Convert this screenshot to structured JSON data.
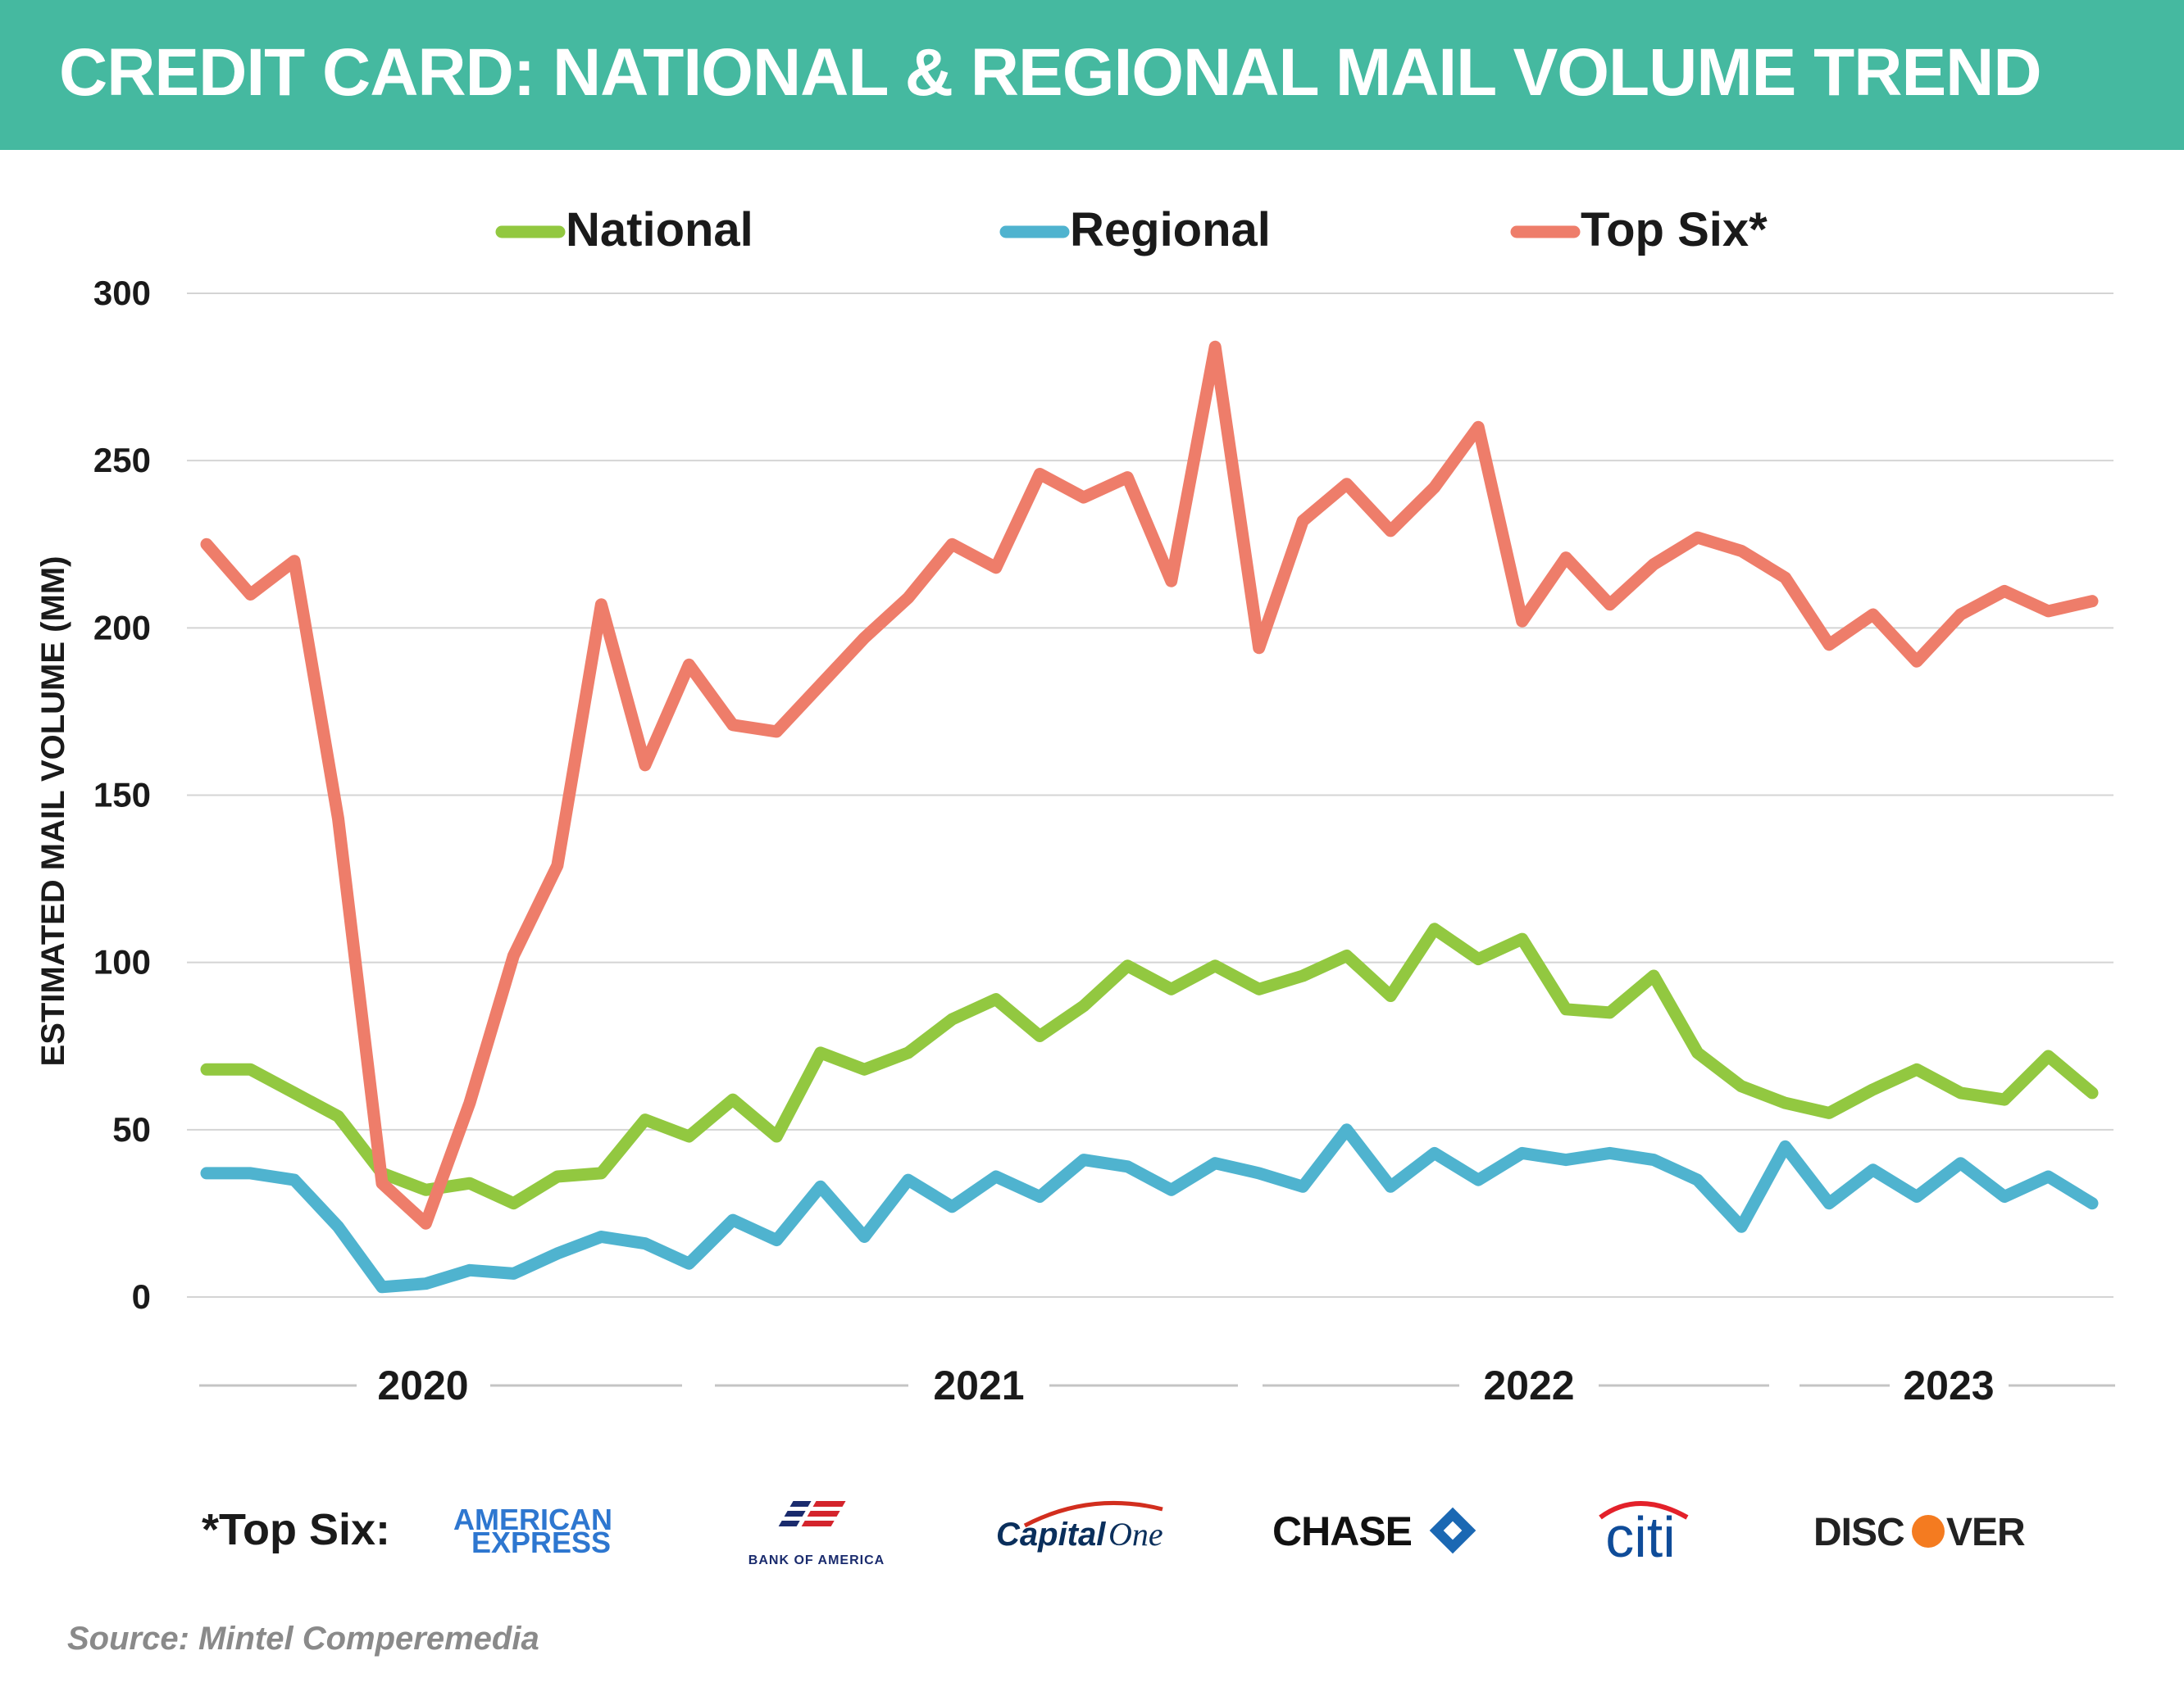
{
  "header": {
    "title": "CREDIT CARD: NATIONAL & REGIONAL MAIL VOLUME TREND"
  },
  "chart_data": {
    "type": "line",
    "title": "CREDIT CARD: NATIONAL & REGIONAL MAIL VOLUME TREND",
    "ylabel": "ESTIMATED MAIL VOLUME (MM)",
    "xlabel": "",
    "ylim": [
      0,
      300
    ],
    "yticks": [
      0,
      50,
      100,
      150,
      200,
      250,
      300
    ],
    "grid": true,
    "legend_position": "top",
    "x_period": "monthly",
    "year_labels": [
      "2020",
      "2021",
      "2022",
      "2023"
    ],
    "series": [
      {
        "name": "National",
        "color": "#92c840",
        "values": [
          68,
          68,
          61,
          54,
          37,
          32,
          34,
          28,
          36,
          37,
          53,
          48,
          59,
          48,
          73,
          68,
          73,
          83,
          89,
          78,
          87,
          99,
          92,
          99,
          92,
          96,
          102,
          90,
          110,
          101,
          107,
          86,
          85,
          96,
          73,
          63,
          58,
          55,
          62,
          68,
          61,
          59,
          72,
          61
        ]
      },
      {
        "name": "Regional",
        "color": "#4fb3cf",
        "values": [
          37,
          37,
          35,
          21,
          3,
          4,
          8,
          7,
          13,
          18,
          16,
          10,
          23,
          17,
          33,
          18,
          35,
          27,
          36,
          30,
          41,
          39,
          32,
          40,
          37,
          33,
          50,
          33,
          43,
          35,
          43,
          41,
          43,
          41,
          35,
          21,
          45,
          28,
          38,
          30,
          40,
          30,
          36,
          28
        ]
      },
      {
        "name": "Top Six*",
        "color": "#ee7d6a",
        "values": [
          225,
          210,
          220,
          143,
          34,
          22,
          58,
          102,
          129,
          207,
          159,
          189,
          171,
          169,
          183,
          197,
          209,
          225,
          218,
          246,
          239,
          245,
          214,
          284,
          194,
          232,
          243,
          229,
          242,
          260,
          202,
          221,
          207,
          219,
          227,
          223,
          215,
          195,
          204,
          190,
          204,
          211,
          205,
          208
        ]
      }
    ]
  },
  "footnote": {
    "label": "*Top Six:",
    "brands": [
      "AMERICAN",
      "EXPRESS",
      "BANK OF AMERICA",
      "Capital",
      "One",
      "CHASE",
      "citi",
      "DISC",
      "VER"
    ]
  },
  "source": "Source: Mintel Comperemedia",
  "colors": {
    "banner": "#45b9a0",
    "grid": "#d4d4d4",
    "text": "#1a1a1a"
  }
}
